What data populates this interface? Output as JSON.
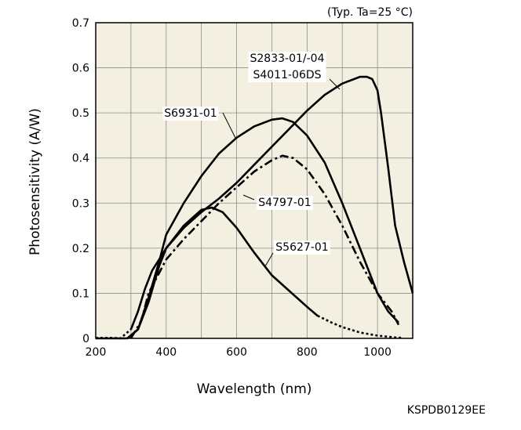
{
  "chart_data": {
    "type": "line",
    "condition": "(Typ. Ta=25 °C)",
    "xlabel": "Wavelength (nm)",
    "ylabel": "Photosensitivity (A/W)",
    "code": "KSPDB0129EE",
    "xlim": [
      200,
      1100
    ],
    "ylim": [
      0,
      0.7
    ],
    "xticks": [
      200,
      400,
      600,
      800,
      1000
    ],
    "yticks": [
      0,
      0.1,
      0.2,
      0.3,
      0.4,
      0.5,
      0.6,
      0.7
    ],
    "xgrid": [
      200,
      300,
      400,
      500,
      600,
      700,
      800,
      900,
      1000,
      1100
    ],
    "grid": true,
    "series": [
      {
        "name": "S2833-01/-04\nS4011-06DS",
        "style": "solid",
        "x": [
          200,
          290,
          320,
          350,
          380,
          400,
          450,
          500,
          550,
          600,
          650,
          700,
          750,
          800,
          850,
          900,
          950,
          970,
          985,
          1000,
          1010,
          1030,
          1050,
          1075,
          1100
        ],
        "y": [
          0,
          0,
          0.02,
          0.08,
          0.16,
          0.2,
          0.245,
          0.28,
          0.31,
          0.345,
          0.385,
          0.425,
          0.465,
          0.505,
          0.54,
          0.565,
          0.58,
          0.58,
          0.575,
          0.55,
          0.5,
          0.38,
          0.25,
          0.17,
          0.1
        ]
      },
      {
        "name": "S6931-01",
        "style": "solid",
        "x": [
          290,
          320,
          350,
          380,
          400,
          450,
          500,
          550,
          600,
          650,
          700,
          730,
          760,
          800,
          850,
          900,
          950,
          1000,
          1030,
          1060
        ],
        "y": [
          0,
          0.02,
          0.09,
          0.17,
          0.23,
          0.3,
          0.36,
          0.41,
          0.445,
          0.47,
          0.485,
          0.488,
          0.48,
          0.45,
          0.39,
          0.3,
          0.2,
          0.1,
          0.06,
          0.035
        ]
      },
      {
        "name": "S4797-01",
        "style": "dashdot",
        "x": [
          300,
          330,
          350,
          380,
          400,
          450,
          500,
          550,
          600,
          650,
          700,
          730,
          760,
          800,
          850,
          900,
          950,
          1000,
          1040,
          1060
        ],
        "y": [
          0,
          0.04,
          0.1,
          0.145,
          0.175,
          0.22,
          0.26,
          0.3,
          0.335,
          0.37,
          0.395,
          0.405,
          0.4,
          0.375,
          0.32,
          0.25,
          0.17,
          0.1,
          0.06,
          0.03
        ]
      },
      {
        "name": "S5627-01",
        "style": "solid-dotted",
        "solid_until": 830,
        "x": [
          200,
          250,
          270,
          300,
          320,
          340,
          360,
          380,
          400,
          450,
          500,
          530,
          560,
          600,
          650,
          700,
          750,
          800,
          830,
          870,
          900,
          950,
          1000,
          1050,
          1070
        ],
        "y": [
          0.001,
          0.001,
          0,
          0.02,
          0.06,
          0.11,
          0.15,
          0.175,
          0.2,
          0.25,
          0.285,
          0.29,
          0.28,
          0.245,
          0.19,
          0.14,
          0.105,
          0.07,
          0.05,
          0.035,
          0.025,
          0.013,
          0.006,
          0.002,
          0.001
        ]
      }
    ]
  }
}
